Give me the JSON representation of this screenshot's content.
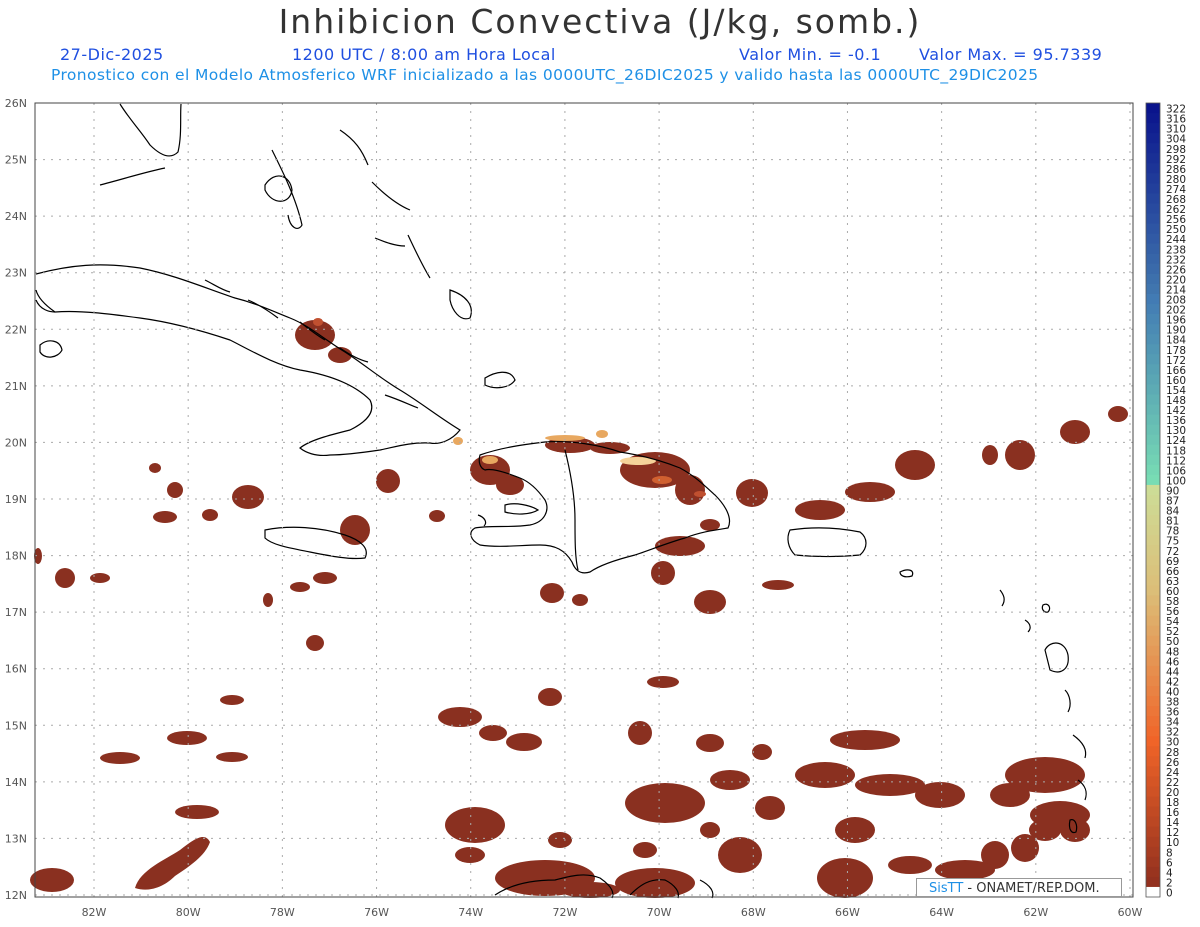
{
  "header": {
    "title": "Inhibicion Convectiva (J/kg, somb.)",
    "date": "27-Dic-2025",
    "time": "1200 UTC / 8:00 am Hora Local",
    "vmin": "Valor Min. = -0.1",
    "vmax": "Valor Max. = 95.7339",
    "subtitle": "Pronostico con el Modelo Atmosferico WRF inicializado a las 0000UTC_26DIC2025 y valido hasta las  0000UTC_29DIC2025"
  },
  "map": {
    "lon_labels": [
      "82W",
      "80W",
      "78W",
      "76W",
      "74W",
      "72W",
      "70W",
      "68W",
      "66W",
      "64W",
      "62W",
      "60W"
    ],
    "lat_labels": [
      "26N",
      "25N",
      "24N",
      "23N",
      "22N",
      "21N",
      "20N",
      "19N",
      "18N",
      "17N",
      "16N",
      "15N",
      "14N",
      "13N",
      "12N"
    ]
  },
  "colorbar": {
    "labels": [
      "322",
      "316",
      "310",
      "304",
      "298",
      "292",
      "286",
      "280",
      "274",
      "268",
      "262",
      "256",
      "250",
      "244",
      "238",
      "232",
      "226",
      "220",
      "214",
      "208",
      "202",
      "196",
      "190",
      "184",
      "178",
      "172",
      "166",
      "160",
      "154",
      "148",
      "142",
      "136",
      "130",
      "124",
      "118",
      "112",
      "106",
      "100",
      "90",
      "87",
      "84",
      "81",
      "78",
      "75",
      "72",
      "69",
      "66",
      "63",
      "60",
      "58",
      "56",
      "54",
      "52",
      "50",
      "48",
      "46",
      "44",
      "42",
      "40",
      "38",
      "36",
      "34",
      "32",
      "30",
      "28",
      "26",
      "24",
      "22",
      "20",
      "18",
      "16",
      "14",
      "12",
      "10",
      "8",
      "6",
      "4",
      "2",
      "0"
    ]
  },
  "credit": {
    "logo": "SisTT",
    "text": " - ONAMET/REP.DOM."
  },
  "colors": {
    "cin": "#8a3020",
    "high": "#e8bd80",
    "coast": "#000000",
    "grid": "#aaaaaa"
  }
}
